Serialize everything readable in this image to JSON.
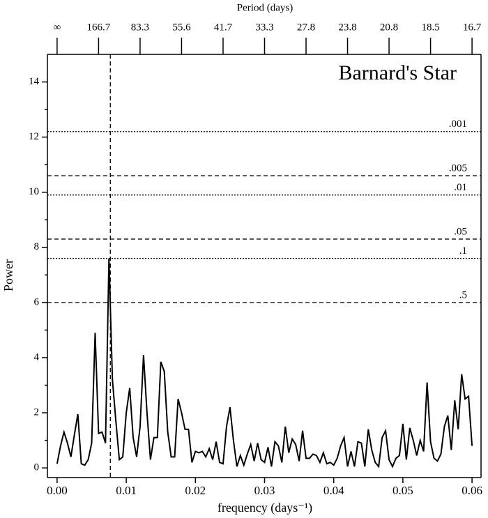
{
  "chart_data": {
    "type": "line",
    "title": "Barnard's Star",
    "xlabel": "frequency (days⁻¹)",
    "ylabel": "Power",
    "x2label": "Period (days)",
    "x": [
      0.0,
      0.0005,
      0.001,
      0.0015,
      0.002,
      0.0025,
      0.003,
      0.0035,
      0.004,
      0.0045,
      0.005,
      0.0055,
      0.006,
      0.0065,
      0.007,
      0.0075,
      0.008,
      0.0085,
      0.009,
      0.0095,
      0.01,
      0.0105,
      0.011,
      0.0115,
      0.012,
      0.0125,
      0.013,
      0.0135,
      0.014,
      0.0145,
      0.015,
      0.0155,
      0.016,
      0.0165,
      0.017,
      0.0175,
      0.018,
      0.0185,
      0.019,
      0.0195,
      0.02,
      0.0205,
      0.021,
      0.0215,
      0.022,
      0.0225,
      0.023,
      0.0235,
      0.024,
      0.0245,
      0.025,
      0.0255,
      0.026,
      0.0265,
      0.027,
      0.0275,
      0.028,
      0.0285,
      0.029,
      0.0295,
      0.03,
      0.0305,
      0.031,
      0.0315,
      0.032,
      0.0325,
      0.033,
      0.0335,
      0.034,
      0.0345,
      0.035,
      0.0355,
      0.036,
      0.0365,
      0.037,
      0.0375,
      0.038,
      0.0385,
      0.039,
      0.0395,
      0.04,
      0.0405,
      0.041,
      0.0415,
      0.042,
      0.0425,
      0.043,
      0.0435,
      0.044,
      0.0445,
      0.045,
      0.0455,
      0.046,
      0.0465,
      0.047,
      0.0475,
      0.048,
      0.0485,
      0.049,
      0.0495,
      0.05,
      0.0505,
      0.051,
      0.0515,
      0.052,
      0.0525,
      0.053,
      0.0535,
      0.054,
      0.0545,
      0.055,
      0.0555,
      0.056,
      0.0565,
      0.057,
      0.0575,
      0.058,
      0.0585,
      0.059,
      0.0595,
      0.06
    ],
    "series": [
      {
        "color": "#000000",
        "values": [
          0.15,
          0.8,
          1.3,
          0.9,
          0.4,
          1.2,
          1.95,
          0.15,
          0.1,
          0.3,
          0.9,
          4.9,
          1.25,
          1.3,
          0.9,
          7.6,
          3.2,
          1.7,
          0.3,
          0.4,
          2.0,
          2.9,
          1.1,
          0.4,
          1.5,
          4.1,
          2.0,
          0.3,
          1.1,
          1.1,
          3.85,
          3.5,
          1.3,
          0.4,
          0.4,
          2.5,
          2.0,
          1.4,
          1.4,
          0.2,
          0.6,
          0.55,
          0.6,
          0.4,
          0.7,
          0.3,
          0.95,
          0.2,
          0.15,
          1.5,
          2.2,
          1.0,
          0.05,
          0.45,
          0.1,
          0.5,
          0.85,
          0.25,
          0.9,
          0.3,
          0.2,
          0.75,
          0.05,
          0.95,
          0.8,
          0.2,
          1.5,
          0.55,
          1.05,
          0.85,
          0.25,
          1.35,
          0.35,
          0.35,
          0.5,
          0.45,
          0.2,
          0.55,
          0.15,
          0.2,
          0.1,
          0.35,
          0.8,
          1.1,
          0.05,
          0.6,
          0.05,
          0.95,
          0.9,
          0.05,
          1.4,
          0.65,
          0.2,
          0.05,
          1.1,
          1.35,
          0.3,
          0.05,
          0.35,
          0.45,
          1.6,
          0.3,
          1.45,
          1.0,
          0.45,
          1.0,
          0.6,
          3.1,
          0.95,
          0.35,
          0.25,
          0.5,
          1.5,
          1.9,
          0.65,
          2.45,
          1.4,
          3.4,
          2.5,
          2.6,
          0.8
        ]
      }
    ],
    "xlim": [
      -0.0014,
      0.0613
    ],
    "ylim": [
      -0.35,
      15
    ],
    "xticks": [
      {
        "value": 0,
        "label": "0.00"
      },
      {
        "value": 0.01,
        "label": "0.01"
      },
      {
        "value": 0.02,
        "label": "0.02"
      },
      {
        "value": 0.03,
        "label": "0.03"
      },
      {
        "value": 0.04,
        "label": "0.04"
      },
      {
        "value": 0.05,
        "label": "0.05"
      },
      {
        "value": 0.06,
        "label": "0.06"
      }
    ],
    "yticks": [
      0,
      2,
      4,
      6,
      8,
      10,
      12,
      14
    ],
    "x2ticks": [
      {
        "value": 0,
        "label": "∞"
      },
      {
        "value": 0.006,
        "label": "166.7"
      },
      {
        "value": 0.012,
        "label": "83.3"
      },
      {
        "value": 0.018,
        "label": "55.6"
      },
      {
        "value": 0.024,
        "label": "41.7"
      },
      {
        "value": 0.03,
        "label": "33.3"
      },
      {
        "value": 0.036,
        "label": "27.8"
      },
      {
        "value": 0.042,
        "label": "23.8"
      },
      {
        "value": 0.048,
        "label": "20.8"
      },
      {
        "value": 0.054,
        "label": "18.5"
      },
      {
        "value": 0.06,
        "label": "16.7"
      }
    ],
    "hlines": [
      {
        "value": 12.2,
        "label": ".001",
        "style": "dotted"
      },
      {
        "value": 10.6,
        "label": ".005",
        "style": "dashed"
      },
      {
        "value": 9.9,
        "label": ".01",
        "style": "dotted"
      },
      {
        "value": 8.3,
        "label": ".05",
        "style": "dashed"
      },
      {
        "value": 7.6,
        "label": ".1",
        "style": "dotted"
      },
      {
        "value": 6.0,
        "label": ".5",
        "style": "dashed"
      }
    ],
    "vlines": [
      {
        "value": 0.0077,
        "style": "dashed"
      }
    ]
  }
}
